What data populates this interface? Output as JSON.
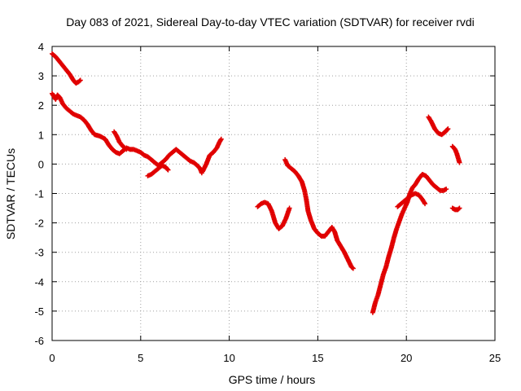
{
  "chart_data": {
    "type": "scatter",
    "title": "Day 083 of 2021, Sidereal Day-to-day VTEC variation (SDTVAR) for receiver rvdi",
    "xlabel": "GPS time / hours",
    "ylabel": "SDTVAR / TECUs",
    "xlim": [
      0,
      25
    ],
    "ylim": [
      -6,
      4
    ],
    "x_ticks": [
      0,
      5,
      10,
      15,
      20,
      25
    ],
    "y_ticks": [
      -6,
      -5,
      -4,
      -3,
      -2,
      -1,
      0,
      1,
      2,
      3,
      4
    ],
    "grid": true,
    "color": "#e00000",
    "marker": "plus",
    "series": [
      {
        "segments": [
          [
            [
              0.0,
              3.75
            ],
            [
              0.2,
              3.65
            ],
            [
              0.4,
              3.5
            ],
            [
              0.6,
              3.35
            ],
            [
              0.8,
              3.2
            ],
            [
              1.0,
              3.05
            ],
            [
              1.2,
              2.85
            ],
            [
              1.35,
              2.75
            ],
            [
              1.5,
              2.8
            ],
            [
              1.6,
              2.85
            ]
          ],
          [
            [
              0.0,
              2.4
            ],
            [
              0.1,
              2.3
            ],
            [
              0.2,
              2.2
            ],
            [
              0.3,
              2.35
            ],
            [
              0.45,
              2.25
            ],
            [
              0.6,
              2.05
            ],
            [
              0.8,
              1.9
            ],
            [
              1.0,
              1.8
            ],
            [
              1.2,
              1.7
            ],
            [
              1.4,
              1.65
            ],
            [
              1.6,
              1.6
            ],
            [
              1.8,
              1.5
            ],
            [
              2.0,
              1.35
            ],
            [
              2.2,
              1.15
            ],
            [
              2.4,
              1.0
            ],
            [
              2.7,
              0.95
            ],
            [
              3.0,
              0.85
            ],
            [
              3.2,
              0.65
            ],
            [
              3.4,
              0.5
            ],
            [
              3.6,
              0.4
            ],
            [
              3.8,
              0.35
            ],
            [
              4.0,
              0.45
            ],
            [
              4.2,
              0.55
            ],
            [
              4.4,
              0.5
            ],
            [
              4.6,
              0.5
            ],
            [
              4.8,
              0.45
            ],
            [
              5.0,
              0.4
            ],
            [
              5.2,
              0.3
            ],
            [
              5.4,
              0.25
            ],
            [
              5.6,
              0.15
            ],
            [
              5.8,
              0.05
            ],
            [
              6.0,
              -0.05
            ],
            [
              6.2,
              0.05
            ],
            [
              6.4,
              0.15
            ],
            [
              6.6,
              0.3
            ],
            [
              6.8,
              0.4
            ],
            [
              7.0,
              0.5
            ],
            [
              7.2,
              0.4
            ],
            [
              7.4,
              0.3
            ],
            [
              7.6,
              0.2
            ],
            [
              7.8,
              0.1
            ],
            [
              8.0,
              0.05
            ],
            [
              8.2,
              -0.05
            ],
            [
              8.35,
              -0.15
            ],
            [
              8.45,
              -0.3
            ]
          ],
          [
            [
              3.5,
              1.1
            ],
            [
              3.65,
              0.95
            ],
            [
              3.8,
              0.75
            ],
            [
              4.0,
              0.6
            ],
            [
              4.2,
              0.5
            ]
          ],
          [
            [
              5.4,
              -0.4
            ],
            [
              5.6,
              -0.35
            ],
            [
              5.8,
              -0.25
            ],
            [
              6.0,
              -0.15
            ],
            [
              6.2,
              -0.05
            ],
            [
              6.4,
              -0.1
            ],
            [
              6.55,
              -0.2
            ]
          ],
          [
            [
              8.5,
              -0.25
            ],
            [
              8.7,
              0.0
            ],
            [
              8.9,
              0.3
            ],
            [
              9.1,
              0.4
            ],
            [
              9.3,
              0.55
            ],
            [
              9.45,
              0.75
            ],
            [
              9.55,
              0.85
            ]
          ],
          [
            [
              11.6,
              -1.45
            ],
            [
              11.8,
              -1.35
            ],
            [
              12.0,
              -1.3
            ],
            [
              12.2,
              -1.35
            ],
            [
              12.4,
              -1.6
            ],
            [
              12.6,
              -2.0
            ],
            [
              12.8,
              -2.2
            ],
            [
              13.0,
              -2.1
            ],
            [
              13.2,
              -1.85
            ],
            [
              13.4,
              -1.5
            ]
          ],
          [
            [
              13.15,
              0.15
            ],
            [
              13.3,
              -0.05
            ],
            [
              13.5,
              -0.15
            ],
            [
              13.7,
              -0.25
            ],
            [
              13.9,
              -0.4
            ],
            [
              14.1,
              -0.6
            ],
            [
              14.25,
              -0.9
            ],
            [
              14.35,
              -1.2
            ],
            [
              14.45,
              -1.6
            ],
            [
              14.6,
              -1.9
            ],
            [
              14.8,
              -2.2
            ],
            [
              15.0,
              -2.35
            ],
            [
              15.2,
              -2.45
            ],
            [
              15.4,
              -2.45
            ],
            [
              15.6,
              -2.3
            ],
            [
              15.8,
              -2.15
            ],
            [
              15.95,
              -2.3
            ],
            [
              16.1,
              -2.6
            ],
            [
              16.3,
              -2.8
            ],
            [
              16.5,
              -3.0
            ],
            [
              16.7,
              -3.25
            ],
            [
              16.9,
              -3.5
            ],
            [
              17.0,
              -3.55
            ]
          ],
          [
            [
              18.1,
              -5.05
            ],
            [
              18.25,
              -4.7
            ],
            [
              18.4,
              -4.45
            ],
            [
              18.55,
              -4.1
            ],
            [
              18.7,
              -3.75
            ],
            [
              18.85,
              -3.5
            ],
            [
              19.0,
              -3.15
            ],
            [
              19.15,
              -2.85
            ],
            [
              19.3,
              -2.5
            ],
            [
              19.45,
              -2.2
            ],
            [
              19.6,
              -1.95
            ],
            [
              19.75,
              -1.7
            ],
            [
              19.9,
              -1.5
            ],
            [
              20.05,
              -1.3
            ],
            [
              20.2,
              -1.0
            ],
            [
              20.35,
              -0.8
            ],
            [
              20.5,
              -0.7
            ],
            [
              20.7,
              -0.5
            ],
            [
              20.9,
              -0.35
            ],
            [
              21.1,
              -0.4
            ],
            [
              21.3,
              -0.55
            ],
            [
              21.5,
              -0.7
            ],
            [
              21.7,
              -0.8
            ],
            [
              21.9,
              -0.9
            ],
            [
              22.1,
              -0.9
            ],
            [
              22.25,
              -0.85
            ]
          ],
          [
            [
              19.5,
              -1.45
            ],
            [
              19.7,
              -1.35
            ],
            [
              19.9,
              -1.25
            ],
            [
              20.1,
              -1.15
            ],
            [
              20.3,
              -1.05
            ],
            [
              20.5,
              -1.0
            ],
            [
              20.7,
              -1.05
            ],
            [
              20.9,
              -1.2
            ],
            [
              21.05,
              -1.35
            ]
          ],
          [
            [
              21.25,
              1.6
            ],
            [
              21.4,
              1.45
            ],
            [
              21.6,
              1.2
            ],
            [
              21.8,
              1.05
            ],
            [
              22.0,
              1.0
            ],
            [
              22.2,
              1.1
            ],
            [
              22.35,
              1.2
            ]
          ],
          [
            [
              22.6,
              0.6
            ],
            [
              22.75,
              0.5
            ],
            [
              22.85,
              0.35
            ],
            [
              22.95,
              0.15
            ],
            [
              23.0,
              0.05
            ]
          ],
          [
            [
              22.6,
              -1.5
            ],
            [
              22.75,
              -1.55
            ],
            [
              22.9,
              -1.55
            ],
            [
              23.0,
              -1.5
            ]
          ]
        ]
      }
    ]
  }
}
